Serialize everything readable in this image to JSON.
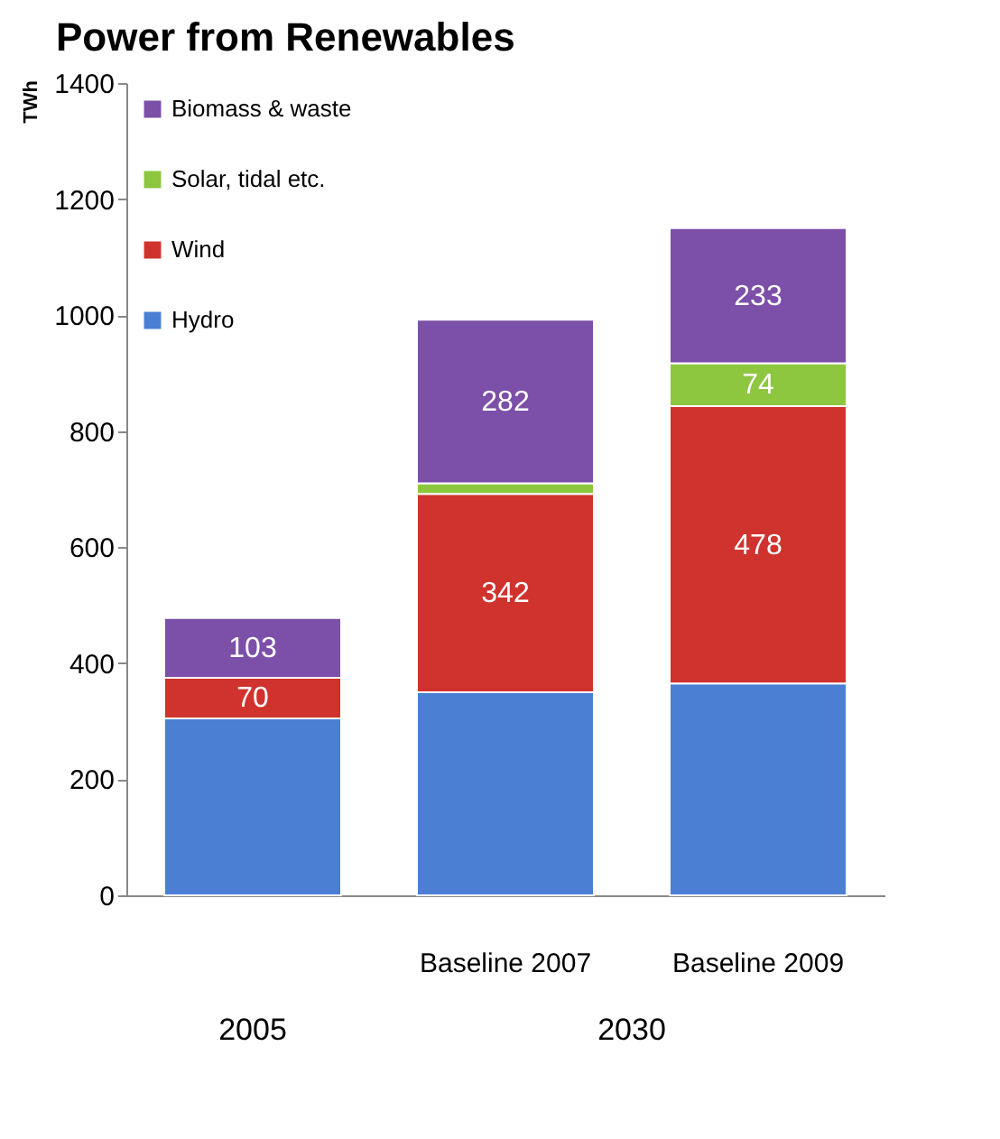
{
  "chart_data": {
    "type": "bar",
    "title": "Power from Renewables",
    "ylabel": "TWh",
    "categories": [
      null,
      "Baseline 2007",
      "Baseline 2009"
    ],
    "stacked": true,
    "series": [
      {
        "name": "Hydro",
        "color": "#4a7fd4",
        "values": [
          305,
          350,
          365
        ],
        "value_labels": [
          null,
          null,
          null
        ]
      },
      {
        "name": "Wind",
        "color": "#d0332d",
        "values": [
          70,
          342,
          478
        ],
        "value_labels": [
          "70",
          "342",
          "478"
        ]
      },
      {
        "name": "Solar, tidal etc.",
        "color": "#8dc63f",
        "values": [
          null,
          18,
          74
        ],
        "value_labels": [
          null,
          null,
          "74"
        ]
      },
      {
        "name": "Biomass & waste",
        "color": "#7c4fa8",
        "values": [
          103,
          282,
          233
        ],
        "value_labels": [
          "103",
          "282",
          "233"
        ]
      }
    ],
    "ylim": [
      0,
      1400
    ],
    "yticks": [
      0,
      200,
      400,
      600,
      800,
      1000,
      1200,
      1400
    ],
    "grid": false,
    "legend": "top left",
    "annotations": [
      "2005",
      "2030"
    ]
  }
}
